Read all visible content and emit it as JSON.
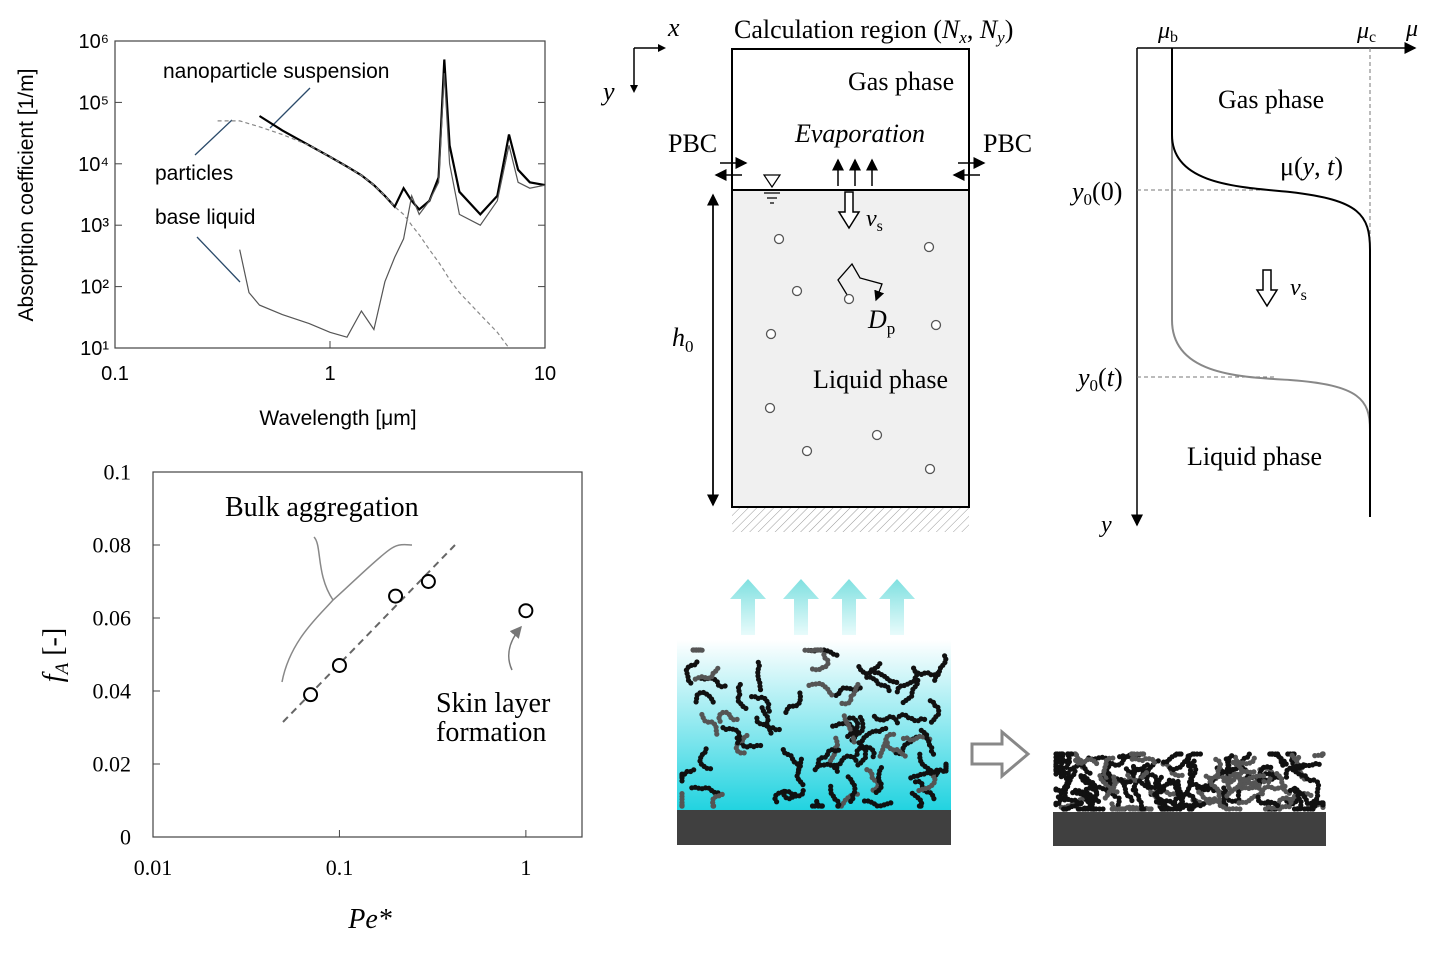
{
  "chart_data": [
    {
      "type": "line",
      "x_label": "Wavelength [μm]",
      "y_label": "Absorption coefficient [1/m]",
      "log_x": true,
      "log_y": true,
      "x": [
        0.3,
        0.38,
        0.42,
        0.47,
        0.6,
        0.8,
        1.0,
        1.2,
        1.4,
        1.6,
        1.8,
        2.0,
        2.2,
        2.4,
        2.6,
        2.9,
        3.2,
        3.4,
        3.6,
        4.0,
        5.0,
        6.0,
        6.8,
        7.5,
        8.5,
        10
      ],
      "series": [
        {
          "name": "nanoparticle suspension",
          "color": "#000000",
          "values": [
            null,
            null,
            null,
            60000,
            35000,
            20000,
            13000,
            9000,
            6500,
            4500,
            3000,
            2000,
            4000,
            2500,
            1800,
            2500,
            6000,
            500000,
            20000,
            3500,
            1500,
            3000,
            30000,
            8000,
            5000,
            4500
          ]
        },
        {
          "name": "base liquid",
          "color": "#555555",
          "values": [
            null,
            400,
            80,
            50,
            35,
            25,
            18,
            15,
            40,
            20,
            120,
            300,
            600,
            3000,
            1500,
            2500,
            5000,
            300000,
            10000,
            1500,
            1000,
            2500,
            20000,
            5000,
            4000,
            4500
          ]
        },
        {
          "name": "particles",
          "color": "#888888",
          "dashed": true,
          "values": [
            50000,
            50000,
            45000,
            40000,
            30000,
            20000,
            13000,
            9000,
            6500,
            4500,
            3000,
            2000,
            1500,
            1000,
            700,
            400,
            250,
            180,
            130,
            80,
            35,
            18,
            10,
            null,
            null,
            null
          ]
        }
      ],
      "xlim": [
        0.1,
        10
      ],
      "xticks": [
        0.1,
        1,
        10
      ],
      "ylim": [
        10,
        1000000
      ],
      "yticks": [
        {
          "value": 10,
          "label": "10¹"
        },
        {
          "value": 100,
          "label": "10²"
        },
        {
          "value": 1000,
          "label": "10³"
        },
        {
          "value": 10000,
          "label": "10⁴"
        },
        {
          "value": 100000,
          "label": "10⁵"
        },
        {
          "value": 1000000,
          "label": "10⁶"
        }
      ]
    },
    {
      "type": "scatter",
      "x_label": "Pe*",
      "y_label": [
        "f",
        "A",
        " [-]"
      ],
      "log_x": true,
      "color": "#000000",
      "x": [
        0.07,
        0.1,
        0.2,
        0.3,
        1
      ],
      "values": [
        0.039,
        0.047,
        0.066,
        0.07,
        0.062
      ],
      "xlim": [
        0.01,
        2
      ],
      "xticks": [
        0.01,
        0.1,
        1
      ],
      "ylim": [
        0,
        0.1
      ],
      "yticks": [
        0,
        0.02,
        0.04,
        0.06,
        0.08,
        0.1
      ],
      "annotations": [
        "Bulk aggregation",
        "Skin layer",
        "formation"
      ]
    }
  ],
  "region_diagram": {
    "x_axis": "x",
    "y_axis": "y",
    "title": [
      "Calculation region (",
      "N",
      "x",
      ", ",
      "N",
      "y",
      ")"
    ],
    "gas": "Gas phase",
    "evaporation": "Evaporation",
    "boundary_left": "PBC",
    "boundary_right": "PBC",
    "settling": [
      "v",
      "s"
    ],
    "diffusion": [
      "D",
      "p"
    ],
    "height": [
      "h",
      "0"
    ],
    "liquid": "Liquid phase"
  },
  "profile_diagram": {
    "mu_b": [
      "μ",
      "b"
    ],
    "mu_c": [
      "μ",
      "c"
    ],
    "mu_axis": "μ",
    "y_axis": "y",
    "gas": "Gas phase",
    "profile": [
      "μ(",
      "y",
      ", ",
      "t",
      ")"
    ],
    "y0_initial": [
      "y",
      "0",
      "(0)"
    ],
    "y0_t": [
      "y",
      "0",
      "(",
      "t",
      ")"
    ],
    "settling": [
      "v",
      "s"
    ],
    "liquid": "Liquid phase"
  }
}
